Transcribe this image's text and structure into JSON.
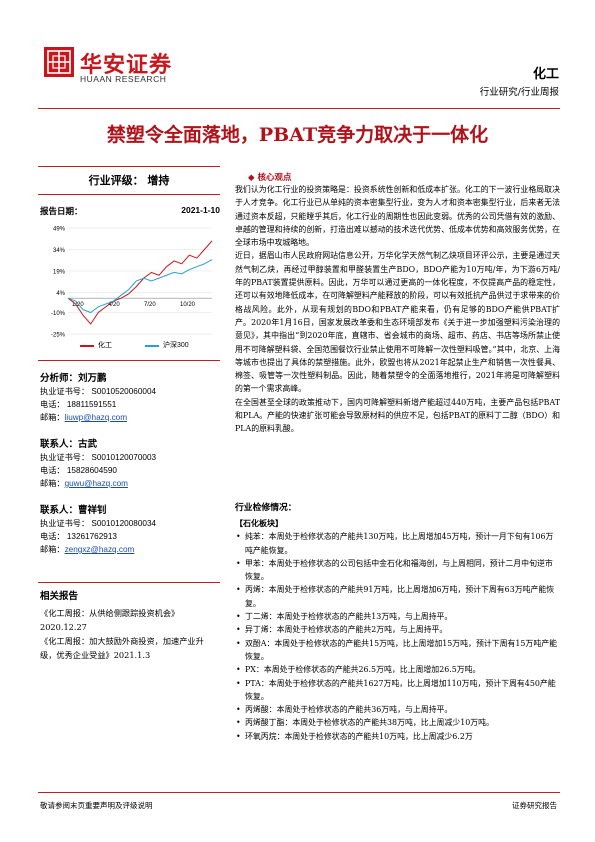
{
  "header": {
    "logo_cn": "华安证券",
    "logo_en": "HUAAN RESEARCH",
    "sector": "化工",
    "category": "行业研究/行业周报"
  },
  "title": "禁塑令全面落地，PBAT竞争力取决于一体化",
  "rating": "行业评级：   增持",
  "report_date_label": "报告日期：",
  "report_date": "2021-1-10",
  "chart_data": {
    "type": "line",
    "x_ticks": [
      "1/20",
      "4/20",
      "7/20",
      "10/20"
    ],
    "y_ticks": [
      "49%",
      "34%",
      "19%",
      "4%",
      "-10%",
      "-25%"
    ],
    "ylim": [
      -25,
      49
    ],
    "series": [
      {
        "name": "化工",
        "color": "#c8161d",
        "values": [
          0,
          -4,
          -12,
          -18,
          -10,
          -6,
          -2,
          0,
          3,
          8,
          14,
          18,
          16,
          22,
          26,
          24,
          30,
          28,
          34,
          40
        ]
      },
      {
        "name": "沪深300",
        "color": "#27a0cf",
        "values": [
          0,
          -2,
          -8,
          -10,
          -6,
          -4,
          -2,
          2,
          6,
          12,
          14,
          12,
          14,
          16,
          18,
          17,
          20,
          22,
          24,
          27
        ]
      }
    ]
  },
  "analysts": [
    {
      "label": "分析师：",
      "name": "刘万鹏",
      "cert": "执业证书号：  S0010520060004",
      "phone": "电话：  18811591551",
      "email_label": "邮箱：",
      "email": "liuwp@hazq.com"
    },
    {
      "label": "联系人：",
      "name": "古武",
      "cert": "执业证书号：  S0010120070003",
      "phone": "电话：  15828604590",
      "email_label": "邮箱：",
      "email": "guwu@hazq.com"
    },
    {
      "label": "联系人：",
      "name": "曹祥钊",
      "cert": "执业证书号：  S0010120080034",
      "phone": "电话：  13261762913",
      "email_label": "邮箱：",
      "email": "zengxz@hazq.com"
    }
  ],
  "related": {
    "heading": "相关报告",
    "items": [
      "《化工周报：从供给侧跟踪投资机会》2020.12.27",
      "《化工周报：加大鼓励外商投资，加速产业升级，优秀企业受益》2021.1.3"
    ]
  },
  "core": {
    "heading": "核心观点",
    "paragraphs": [
      "我们认为化工行业的投资策略是：投资系统性创新和低成本扩张。化工的下一波行业格局取决于人才竞争。化工行业已从单纯的资本密集型行业，变为人才和资本密集型行业，后来者无法通过资本反超，只能瞠乎其后，化工行业的周期性也因此变弱。优秀的公司凭借有效的激励、卓越的管理和持续的创新，打造出难以撼动的技术迭代优势、低成本优势和高效服务优势，在全球市场中攻城略地。",
      "近日，据眉山市人民政府网站信息公开，万华化学天然气制乙炔项目环评公示，主要是通过天然气制乙炔，再经过甲醇装置和甲醛装置生产BDO，BDO产能为10万吨/年，为下游6万吨/年的PBAT装置提供原料。因此，万华可以通过更高的一体化程度，不仅提高产品的稳定性，还可以有效地降低成本，在可降解塑料产能释放的阶段，可以有效抵抗产品供过于求带来的价格战风险。此外，从现有规划的BDO和PBAT产能来看，仍有足够的BDO产能供PBAT扩产。2020年1月16日，国家发展改革委和生态环境部发布《关于进一步加强塑料污染治理的意见》，其中指出“到2020年底，直辖市、省会城市的商场、超市、药店、书店等场所禁止使用不可降解塑料袋、全国范围餐饮行业禁止使用不可降解一次性塑料吸管。”其中，北京、上海等城市也提出了具体的禁塑措施。此外，欧盟也将从2021年起禁止生产和销售一次性餐具、棉签、吸管等一次性塑料制品。因此，随着禁塑令的全面落地推行，2021年将是可降解塑料的第一个需求高峰。",
      "在全国甚至全球的政策推动下，国内可降解塑料新增产能超过440万吨，主要产品包括PBAT和PLA。产能的快速扩张可能会导致原材料的供应不足，包括PBAT的原料丁二醇（BDO）和PLA的原料乳酸。"
    ]
  },
  "tracking": {
    "heading": "行业检修情况：",
    "sub": "【石化板块】",
    "items": [
      "纯苯：本周处于检修状态的产能共130万吨，比上周增加45万吨，预计一月下旬有106万吨产能恢复。",
      "甲苯：本周处于检修状态的公司包括中金石化和福海创，与上周相同，预计二月中旬逆市恢复。",
      "丙烯：本周处于检修状态的产能共91万吨，比上周增加6万吨，预计下周有63万吨产能恢复。",
      "丁二烯：本周处于检修状态的产能共13万吨，与上周持平。",
      "异丁烯：本周处于检修状态的产能共2万吨，与上周持平。",
      "双酚A：本周处于检修状态的产能共15万吨，比上周增加15万吨，预计下周有15万吨产能恢复。",
      "PX：本周处于检修状态的产能共26.5万吨，比上周增加26.5万吨。",
      "PTA：本周处于检修状态的产能共1627万吨，比上周增加110万吨，预计下周有450产能恢复。",
      "丙烯酸：本周处于检修状态的产能共36万吨，与上周持平。",
      "丙烯酸丁酯：本周处于检修状态的产能共38万吨，比上周减少10万吨。",
      "环氧丙烷：本周处于检修状态的产能共10万吨，比上周减少6.2万"
    ]
  },
  "footer": {
    "left": "敬请参阅末页重要声明及评级说明",
    "right": "证券研究报告"
  }
}
